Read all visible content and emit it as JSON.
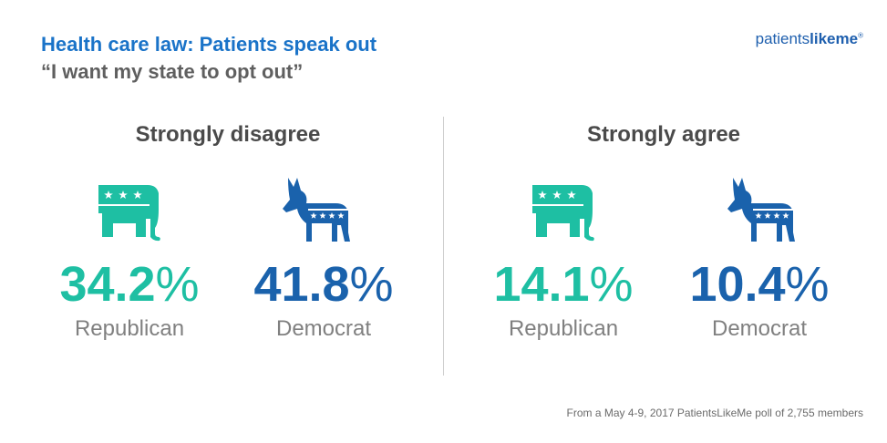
{
  "header": {
    "title": "Health care law: Patients speak out",
    "subtitle": "“I want my state to opt out”",
    "logo": {
      "part1": "patients",
      "part2": "likeme",
      "mark": "®"
    }
  },
  "colors": {
    "republican": "#1ebfa3",
    "democrat": "#1a62ac"
  },
  "icons": {
    "republican": "elephant-icon",
    "democrat": "donkey-icon"
  },
  "chart_data": {
    "type": "bar",
    "groups": [
      {
        "heading": "Strongly disagree",
        "entries": [
          {
            "party": "Republican",
            "value": 34.2,
            "value_text": "34.2"
          },
          {
            "party": "Democrat",
            "value": 41.8,
            "value_text": "41.8"
          }
        ]
      },
      {
        "heading": "Strongly agree",
        "entries": [
          {
            "party": "Republican",
            "value": 14.1,
            "value_text": "14.1"
          },
          {
            "party": "Democrat",
            "value": 10.4,
            "value_text": "10.4"
          }
        ]
      }
    ],
    "unit": "%"
  },
  "footer": {
    "source": "From a May 4-9, 2017 PatientsLikeMe poll of 2,755 members"
  }
}
